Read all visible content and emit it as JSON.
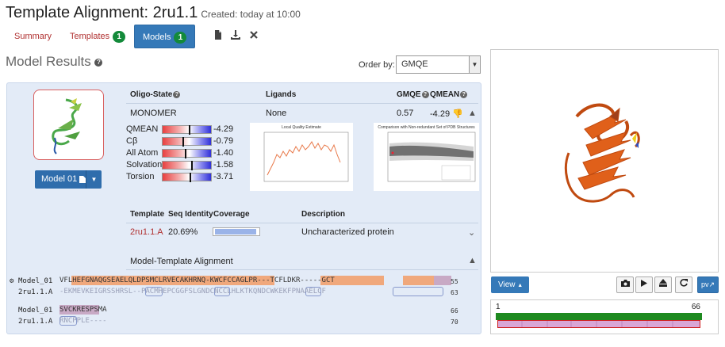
{
  "header": {
    "title": "Template Alignment: 2ru1.1",
    "created": "Created: today at 10:00"
  },
  "tabs": [
    {
      "label": "Summary"
    },
    {
      "label": "Templates",
      "badge": "1"
    },
    {
      "label": "Models",
      "badge": "1",
      "active": true
    }
  ],
  "toolbar_icons": [
    "file-icon",
    "download-icon",
    "close-icon"
  ],
  "results": {
    "title": "Model Results",
    "order_by_label": "Order by:",
    "order_by_value": "GMQE"
  },
  "model": {
    "button_label": "Model 01",
    "columns": {
      "oligo": "Oligo-State",
      "ligands": "Ligands",
      "gmqe": "GMQE",
      "qmean": "QMEAN"
    },
    "row": {
      "oligo": "MONOMER",
      "ligands": "None",
      "gmqe": "0.57",
      "qmean": "-4.29"
    },
    "quality": [
      {
        "label": "QMEAN",
        "value": "-4.29",
        "level": 0.55
      },
      {
        "label": "Cβ",
        "value": "-0.79",
        "level": 0.42
      },
      {
        "label": "All Atom",
        "value": "-1.40",
        "level": 0.47
      },
      {
        "label": "Solvation",
        "value": "-1.58",
        "level": 0.6
      },
      {
        "label": "Torsion",
        "value": "-3.71",
        "level": 0.57
      }
    ],
    "plot_local_title": "Local Quality Estimate",
    "plot_compare_title": "Comparison with Non-redundant Set of PDB Structures"
  },
  "template_table": {
    "headers": {
      "template": "Template",
      "seq_identity": "Seq Identity",
      "coverage": "Coverage",
      "description": "Description"
    },
    "row": {
      "template": "2ru1.1.A",
      "seq_identity": "20.69%",
      "coverage": 0.95,
      "description": "Uncharacterized protein"
    }
  },
  "alignment": {
    "title": "Model-Template Alignment",
    "block1": {
      "model_label": "Model_01",
      "model_seq": "VFLHEFGNAQGSEAELQLDPSMCLRVECAKHRNQ-KWCFCCAGLPR---TCFLDKR-----GCT",
      "model_end": "55",
      "template_label": "2ru1.1.A",
      "template_seq": "-EKMEVKEIGRSSHRSL--PACMHEPCGGFSLGNDCNCCLHLKTKQNDCWKEKFPNAAELCF",
      "template_end": "63"
    },
    "block2": {
      "model_label": "Model_01",
      "model_seq": "SVCKRESPSMA",
      "model_end": "66",
      "template_label": "2ru1.1.A",
      "template_seq": "RNCPPLE----",
      "template_end": "70"
    }
  },
  "viewer": {
    "view_label": "View",
    "controls": [
      "camera-icon",
      "play-icon",
      "eject-icon",
      "refresh-icon"
    ],
    "pv_label": "pv",
    "range_start": "1",
    "range_end": "66"
  },
  "colors": {
    "accent": "#3579b8",
    "badge": "#138a3a",
    "ribbon": "#e0601a"
  }
}
